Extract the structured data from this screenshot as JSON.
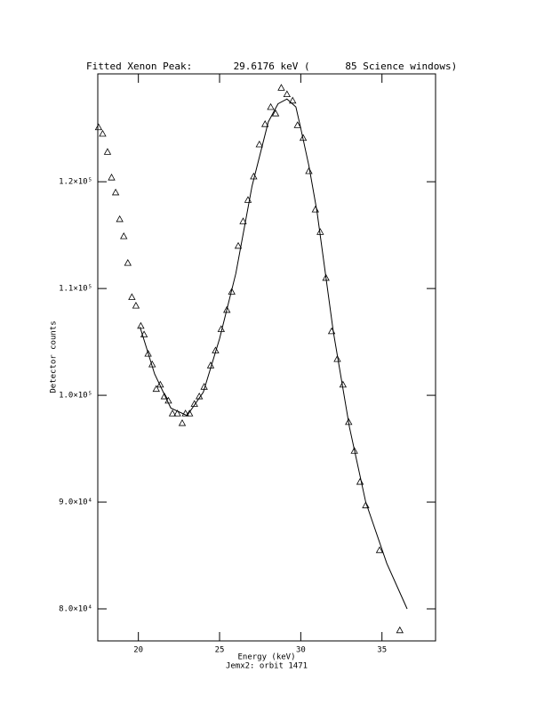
{
  "chart_data": {
    "type": "scatter",
    "title": "Fitted Xenon Peak:       29.6176 keV (      85 Science windows)",
    "x_label": "Energy (keV)",
    "subtitle": "Jemx2: orbit 1471",
    "y_label": "Detector counts",
    "xlim": [
      17.5,
      38.3
    ],
    "ylim": [
      77000,
      130100
    ],
    "xticks": [
      20,
      25,
      30,
      35
    ],
    "yticks": [
      {
        "value": 80000,
        "label": "8.0×10⁴"
      },
      {
        "value": 90000,
        "label": "9.0×10⁴"
      },
      {
        "value": 100000,
        "label": "1.0×10⁵"
      },
      {
        "value": 110000,
        "label": "1.1×10⁵"
      },
      {
        "value": 120000,
        "label": "1.2×10⁵"
      }
    ],
    "series": [
      {
        "type": "scatter",
        "color": "#000000",
        "x": [
          17.55,
          17.8,
          18.1,
          18.35,
          18.6,
          18.85,
          19.1,
          19.35,
          19.6,
          19.85,
          20.15,
          20.35,
          20.6,
          20.85,
          21.1,
          21.35,
          21.6,
          21.85,
          22.1,
          22.4,
          22.7,
          22.9,
          23.15,
          23.45,
          23.75,
          24.05,
          24.45,
          24.75,
          25.1,
          25.45,
          25.75,
          26.15,
          26.45,
          26.75,
          27.1,
          27.45,
          27.8,
          28.15,
          28.45,
          28.8,
          29.15,
          29.5,
          29.8,
          30.15,
          30.5,
          30.9,
          31.2,
          31.55,
          31.9,
          32.25,
          32.6,
          32.95,
          33.3,
          33.65,
          34.0,
          34.85,
          36.1
        ],
        "values": [
          125100,
          124500,
          122800,
          120400,
          119000,
          116500,
          114900,
          112400,
          109200,
          108400,
          106500,
          105700,
          103900,
          102900,
          100600,
          101000,
          99900,
          99500,
          98300,
          98300,
          97400,
          98300,
          98300,
          99200,
          99900,
          100800,
          102800,
          104200,
          106200,
          108000,
          109700,
          114000,
          116300,
          118300,
          120500,
          123500,
          125400,
          127000,
          126400,
          128800,
          128200,
          127600,
          125300,
          124100,
          121000,
          117400,
          115300,
          111000,
          106000,
          103400,
          101000,
          97500,
          94800,
          91900,
          89700,
          85500,
          78000
        ]
      },
      {
        "type": "line",
        "color": "#000000",
        "x": [
          20.1,
          21,
          22,
          23,
          24,
          25,
          26,
          27,
          28,
          28.6,
          29.15,
          29.7,
          30,
          30.5,
          31,
          32,
          33,
          34,
          35.3,
          36.55
        ],
        "values": [
          106400,
          102000,
          98800,
          98100,
          100300,
          105300,
          111400,
          119600,
          125600,
          127300,
          127750,
          127000,
          125000,
          121500,
          117200,
          106000,
          97000,
          90000,
          84250,
          80000
        ]
      }
    ]
  }
}
